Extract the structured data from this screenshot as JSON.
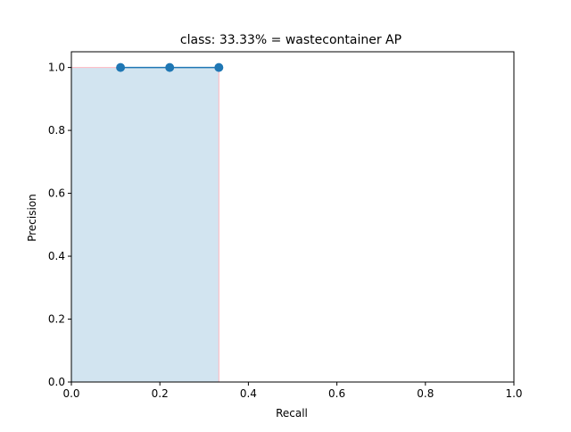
{
  "chart_data": {
    "type": "line",
    "title": "class: 33.33% = wastecontainer AP",
    "xlabel": "Recall",
    "ylabel": "Precision",
    "xlim": [
      0.0,
      1.0
    ],
    "ylim": [
      0.0,
      1.05
    ],
    "grid": false,
    "x_ticks": [
      0.0,
      0.2,
      0.4,
      0.6,
      0.8,
      1.0
    ],
    "x_tick_labels": [
      "0.0",
      "0.2",
      "0.4",
      "0.6",
      "0.8",
      "1.0"
    ],
    "y_ticks": [
      0.0,
      0.2,
      0.4,
      0.6,
      0.8,
      1.0
    ],
    "y_tick_labels": [
      "0.0",
      "0.2",
      "0.4",
      "0.6",
      "0.8",
      "1.0"
    ],
    "series": [
      {
        "marker": "o",
        "color": "#1f77b4",
        "x": [
          0.1111,
          0.2222,
          0.3333
        ],
        "y": [
          1.0,
          1.0,
          1.0
        ]
      }
    ],
    "area": {
      "color": "#1f77b4",
      "alpha": 0.2,
      "edge_color": "#ffb6c1",
      "x": [
        0.0,
        0.0,
        0.3333,
        0.3333
      ],
      "y": [
        0.0,
        1.0,
        1.0,
        0.0
      ]
    }
  }
}
